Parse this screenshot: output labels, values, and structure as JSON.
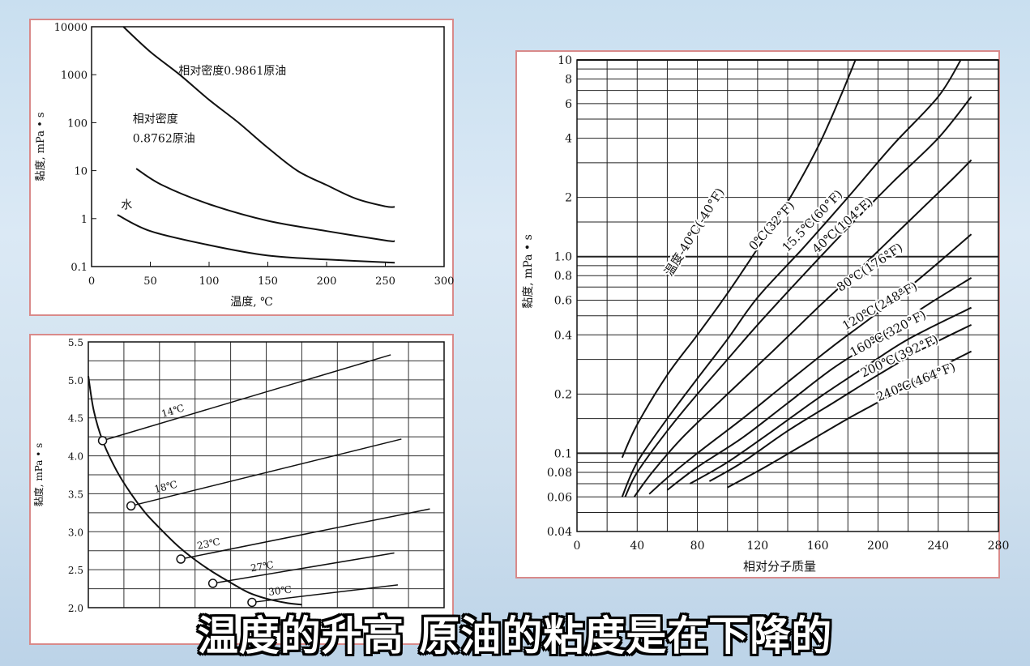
{
  "caption": "温度的升高  原油的粘度是在下降的",
  "chart_data": [
    {
      "id": "c1",
      "type": "line",
      "xlabel": "温度, ℃",
      "ylabel": "黏度, mPa • s",
      "xlim": [
        0,
        300
      ],
      "ylim": [
        0.1,
        10000
      ],
      "yscale": "log",
      "xticks": [
        0,
        50,
        100,
        150,
        200,
        250,
        300
      ],
      "yticks": [
        0.1,
        1,
        10,
        100,
        1000,
        10000
      ],
      "ytick_labels": [
        "0.1",
        "1",
        "10",
        "100",
        "1000",
        "10000"
      ],
      "series": [
        {
          "label_lines": [
            "相对密度0.9861原油"
          ],
          "label_at": [
            74,
            1000
          ],
          "points": [
            [
              27,
              10000
            ],
            [
              50,
              3000
            ],
            [
              75,
              1000
            ],
            [
              100,
              300
            ],
            [
              125,
              100
            ],
            [
              150,
              30
            ],
            [
              175,
              10
            ],
            [
              200,
              5
            ],
            [
              225,
              2.6
            ],
            [
              250,
              1.8
            ],
            [
              258,
              1.75
            ]
          ]
        },
        {
          "label_lines": [
            "相对密度",
            "0.8762原油"
          ],
          "label_at": [
            35,
            100
          ],
          "points": [
            [
              38,
              11
            ],
            [
              60,
              5
            ],
            [
              100,
              2
            ],
            [
              150,
              0.9
            ],
            [
              200,
              0.55
            ],
            [
              250,
              0.35
            ],
            [
              258,
              0.34
            ]
          ]
        },
        {
          "label_lines": [
            "水"
          ],
          "label_at": [
            25,
            1.6
          ],
          "points": [
            [
              22,
              1.2
            ],
            [
              50,
              0.55
            ],
            [
              100,
              0.28
            ],
            [
              150,
              0.17
            ],
            [
              200,
              0.14
            ],
            [
              258,
              0.12
            ]
          ]
        }
      ]
    },
    {
      "id": "c2",
      "type": "line",
      "ylabel": "黏度, mPa • s",
      "ylim": [
        2.0,
        5.5
      ],
      "xlim": [
        0,
        10
      ],
      "yticks": [
        2.0,
        2.5,
        3.0,
        3.5,
        4.0,
        4.5,
        5.0,
        5.5
      ],
      "ytick_labels": [
        "2.0",
        "2.5",
        "3.0",
        "3.5",
        "4.0",
        "4.5",
        "5.0",
        "5.5"
      ],
      "envelope": [
        [
          0,
          5.05
        ],
        [
          0.15,
          4.6
        ],
        [
          0.4,
          4.2
        ],
        [
          0.8,
          3.8
        ],
        [
          1.2,
          3.5
        ],
        [
          1.6,
          3.25
        ],
        [
          2.0,
          3.05
        ],
        [
          2.5,
          2.82
        ],
        [
          3.0,
          2.63
        ],
        [
          3.5,
          2.47
        ],
        [
          4.0,
          2.33
        ],
        [
          4.5,
          2.2
        ],
        [
          5.0,
          2.12
        ],
        [
          5.6,
          2.06
        ],
        [
          6.0,
          2.04
        ]
      ],
      "series": [
        {
          "label": "14℃",
          "label_pos": [
            2.4,
            4.55
          ],
          "points": [
            [
              0.4,
              4.2
            ],
            [
              8.5,
              5.33
            ]
          ]
        },
        {
          "label": "18℃",
          "label_pos": [
            2.2,
            3.55
          ],
          "points": [
            [
              1.2,
              3.34
            ],
            [
              8.8,
              4.22
            ]
          ]
        },
        {
          "label": "23℃",
          "label_pos": [
            3.4,
            2.8
          ],
          "points": [
            [
              2.6,
              2.64
            ],
            [
              9.6,
              3.3
            ]
          ]
        },
        {
          "label": "27℃",
          "label_pos": [
            4.9,
            2.5
          ],
          "points": [
            [
              3.5,
              2.32
            ],
            [
              8.6,
              2.72
            ]
          ]
        },
        {
          "label": "30℃",
          "label_pos": [
            5.4,
            2.18
          ],
          "points": [
            [
              4.6,
              2.07
            ],
            [
              8.7,
              2.3
            ]
          ]
        }
      ]
    },
    {
      "id": "c3",
      "type": "line",
      "xlabel": "相对分子质量",
      "ylabel": "黏度, mPa • s",
      "xlim": [
        0,
        280
      ],
      "ylim": [
        0.04,
        10
      ],
      "yscale": "log",
      "xticks": [
        0,
        40,
        80,
        120,
        160,
        200,
        240,
        280
      ],
      "xtick_labels": [
        "0",
        "40",
        "80",
        "120",
        "160",
        "200",
        "240",
        "280"
      ],
      "yticks": [
        0.04,
        0.06,
        0.08,
        0.1,
        0.2,
        0.4,
        0.6,
        0.8,
        1.0,
        2,
        4,
        6,
        8,
        10
      ],
      "ytick_labels": [
        "0.04",
        "0.06",
        "0.08",
        "0.1",
        "0.2",
        "0.4",
        "0.6",
        "0.8",
        "1.0",
        "2",
        "4",
        "6",
        "8",
        "10"
      ],
      "series": [
        {
          "label": "温度-40℃(-40°F)",
          "points": [
            [
              30,
              0.095
            ],
            [
              40,
              0.14
            ],
            [
              60,
              0.25
            ],
            [
              80,
              0.4
            ],
            [
              100,
              0.65
            ],
            [
              120,
              1.1
            ],
            [
              140,
              1.9
            ],
            [
              160,
              3.6
            ],
            [
              175,
              6.5
            ],
            [
              185,
              10
            ]
          ]
        },
        {
          "label": "0℃(32°F)",
          "points": [
            [
              30,
              0.06
            ],
            [
              40,
              0.09
            ],
            [
              60,
              0.15
            ],
            [
              80,
              0.24
            ],
            [
              100,
              0.38
            ],
            [
              120,
              0.62
            ],
            [
              150,
              1.1
            ],
            [
              180,
              2.0
            ],
            [
              210,
              3.7
            ],
            [
              240,
              6.5
            ],
            [
              255,
              10
            ]
          ]
        },
        {
          "label": "15.5℃(60°F)",
          "points": [
            [
              32,
              0.06
            ],
            [
              40,
              0.08
            ],
            [
              60,
              0.13
            ],
            [
              80,
              0.2
            ],
            [
              100,
              0.3
            ],
            [
              120,
              0.45
            ],
            [
              150,
              0.8
            ],
            [
              180,
              1.4
            ],
            [
              210,
              2.4
            ],
            [
              240,
              4.0
            ],
            [
              262,
              6.5
            ]
          ]
        },
        {
          "label": "40℃(104°F)",
          "points": [
            [
              38,
              0.06
            ],
            [
              50,
              0.08
            ],
            [
              70,
              0.12
            ],
            [
              100,
              0.2
            ],
            [
              130,
              0.33
            ],
            [
              160,
              0.55
            ],
            [
              190,
              0.9
            ],
            [
              220,
              1.5
            ],
            [
              250,
              2.5
            ],
            [
              262,
              3.1
            ]
          ]
        },
        {
          "label": "80℃(176°F)",
          "points": [
            [
              48,
              0.062
            ],
            [
              60,
              0.075
            ],
            [
              80,
              0.1
            ],
            [
              110,
              0.15
            ],
            [
              140,
              0.23
            ],
            [
              170,
              0.35
            ],
            [
              200,
              0.52
            ],
            [
              230,
              0.8
            ],
            [
              262,
              1.3
            ]
          ]
        },
        {
          "label": "120℃(248°F)",
          "points": [
            [
              60,
              0.065
            ],
            [
              80,
              0.085
            ],
            [
              110,
              0.12
            ],
            [
              140,
              0.18
            ],
            [
              170,
              0.27
            ],
            [
              200,
              0.38
            ],
            [
              230,
              0.55
            ],
            [
              262,
              0.78
            ]
          ]
        },
        {
          "label": "160℃(320°F)",
          "points": [
            [
              75,
              0.07
            ],
            [
              100,
              0.09
            ],
            [
              130,
              0.13
            ],
            [
              160,
              0.19
            ],
            [
              190,
              0.27
            ],
            [
              220,
              0.38
            ],
            [
              262,
              0.55
            ]
          ]
        },
        {
          "label": "200℃(392°F)",
          "points": [
            [
              88,
              0.072
            ],
            [
              110,
              0.09
            ],
            [
              140,
              0.13
            ],
            [
              170,
              0.18
            ],
            [
              200,
              0.25
            ],
            [
              230,
              0.34
            ],
            [
              262,
              0.45
            ]
          ]
        },
        {
          "label": "240℃(464°F)",
          "points": [
            [
              100,
              0.067
            ],
            [
              125,
              0.085
            ],
            [
              150,
              0.11
            ],
            [
              180,
              0.15
            ],
            [
              210,
              0.2
            ],
            [
              240,
              0.27
            ],
            [
              262,
              0.33
            ]
          ]
        }
      ]
    }
  ]
}
